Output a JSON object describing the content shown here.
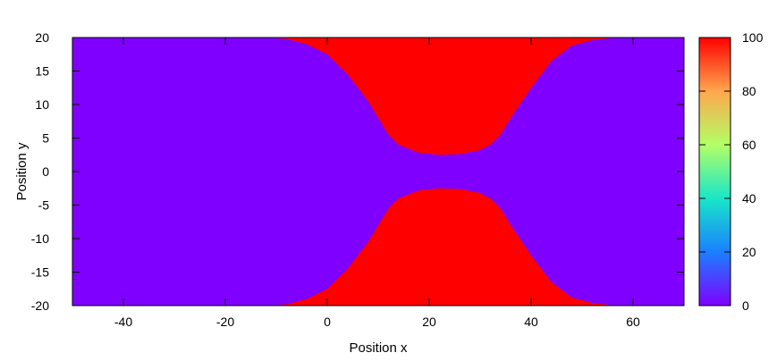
{
  "chart_data": {
    "type": "heatmap",
    "title": "",
    "xlabel": "Position x",
    "ylabel": "Position y",
    "xlim": [
      -50,
      70
    ],
    "ylim": [
      -20,
      20
    ],
    "x_ticks": [
      -40,
      -20,
      0,
      20,
      40,
      60
    ],
    "y_ticks": [
      -20,
      -15,
      -10,
      -5,
      0,
      5,
      10,
      15,
      20
    ],
    "colorbar": {
      "range": [
        0,
        100
      ],
      "ticks": [
        0,
        20,
        40,
        60,
        80,
        100
      ],
      "palette": [
        "#7f00ff",
        "#1a80ff",
        "#19e6c8",
        "#b3ff66",
        "#ffa64d",
        "#ff0000"
      ]
    },
    "background_value": 0,
    "region_value": 100,
    "boundary": {
      "description_values": "upper region occupies y >= boundary_y; lower region mirrored (y <= -boundary_y)",
      "x": [
        -12,
        -8,
        -4,
        0,
        4,
        8,
        10,
        12,
        14,
        18,
        22,
        26,
        30,
        32,
        34,
        36,
        40,
        44,
        48,
        52,
        56,
        58
      ],
      "y": [
        20,
        19.8,
        19,
        17.5,
        14.5,
        10.5,
        8,
        5.5,
        4,
        2.8,
        2.5,
        2.6,
        3.2,
        4,
        5.5,
        8,
        12.5,
        16.5,
        18.8,
        19.6,
        19.95,
        20
      ]
    },
    "grid": false,
    "legend": "none"
  }
}
